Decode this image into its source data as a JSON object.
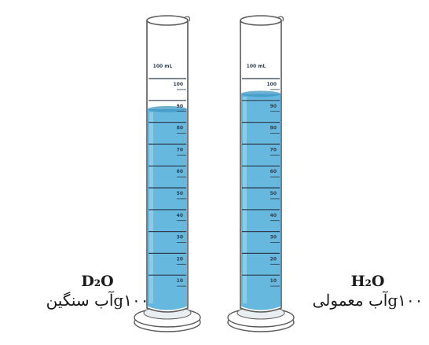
{
  "cylinders": [
    {
      "name": "heavy-water",
      "top_label": "100 mL",
      "marks": [
        "100",
        "90",
        "80",
        "70",
        "60",
        "50",
        "40",
        "30",
        "20",
        "10"
      ],
      "fill_level_fraction": 0.86,
      "formula": "D₂O",
      "description": "g۱۰۰آب سنگین"
    },
    {
      "name": "ordinary-water",
      "top_label": "100 mL",
      "marks": [
        "100",
        "90",
        "80",
        "70",
        "60",
        "50",
        "40",
        "30",
        "20",
        "10"
      ],
      "fill_level_fraction": 0.93,
      "formula": "H₂O",
      "description": "g۱۰۰آب معمولی"
    }
  ],
  "colors": {
    "water": "#66b8de",
    "water_dark": "#3f97c4",
    "glass_edge": "#5a5a5a",
    "tick": "#2f3f4f"
  }
}
